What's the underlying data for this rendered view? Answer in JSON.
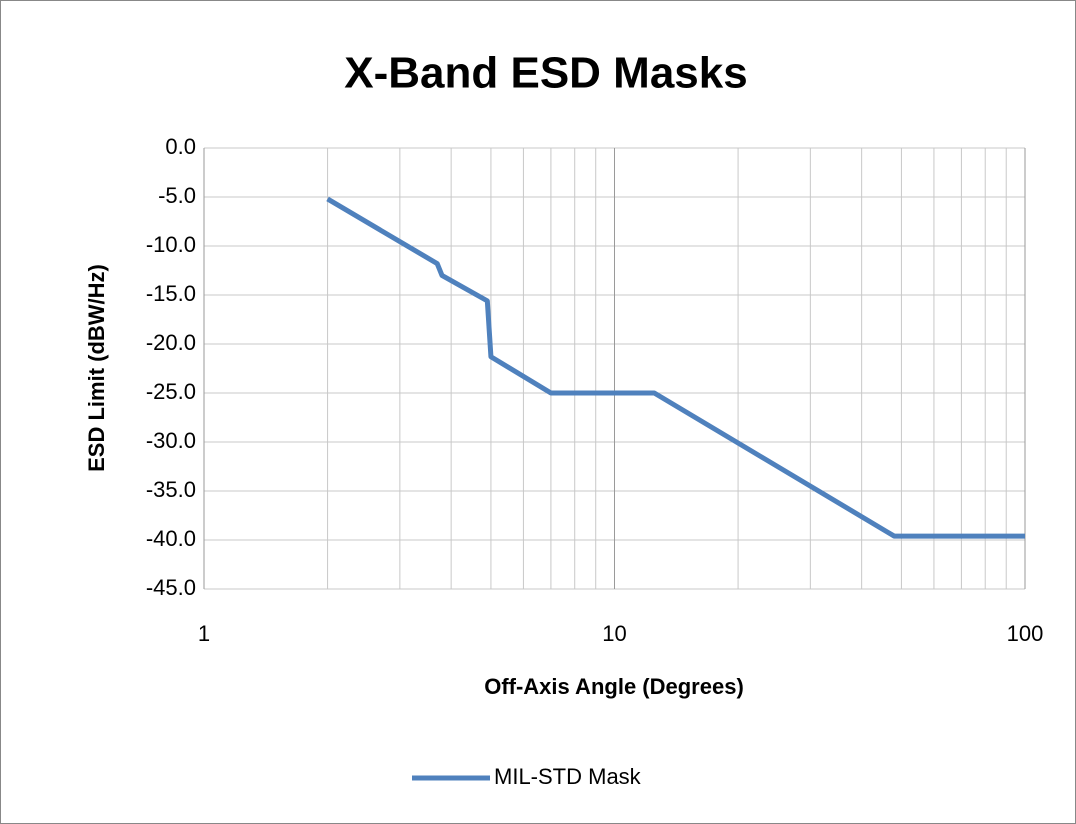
{
  "chart_data": {
    "type": "line",
    "title": "X-Band ESD Masks",
    "x_label": "Off-Axis Angle (Degrees)",
    "y_label": "ESD Limit (dBW/Hz)",
    "x": [
      2,
      3.7,
      3.8,
      4.9,
      5,
      7,
      12.5,
      48,
      100
    ],
    "series": [
      {
        "name": "MIL-STD Mask",
        "color": "#4f81bd",
        "values": [
          -5.2,
          -11.8,
          -13.0,
          -15.6,
          -21.3,
          -25,
          -25,
          -39.6,
          -39.6
        ]
      }
    ],
    "xlim": [
      1,
      100
    ],
    "xticks": [
      1,
      10,
      100
    ],
    "x_log": true,
    "ylim": [
      -45,
      0
    ],
    "yticks": [
      {
        "value": 0,
        "label": "0.0"
      },
      {
        "value": -5,
        "label": "-5.0"
      },
      {
        "value": -10,
        "label": "-10.0"
      },
      {
        "value": -15,
        "label": "-15.0"
      },
      {
        "value": -20,
        "label": "-20.0"
      },
      {
        "value": -25,
        "label": "-25.0"
      },
      {
        "value": -30,
        "label": "-30.0"
      },
      {
        "value": -35,
        "label": "-35.0"
      },
      {
        "value": -40,
        "label": "-40.0"
      },
      {
        "value": -45,
        "label": "-45.0"
      }
    ],
    "grid": true,
    "minor_grid": true,
    "legend": "bottom"
  }
}
